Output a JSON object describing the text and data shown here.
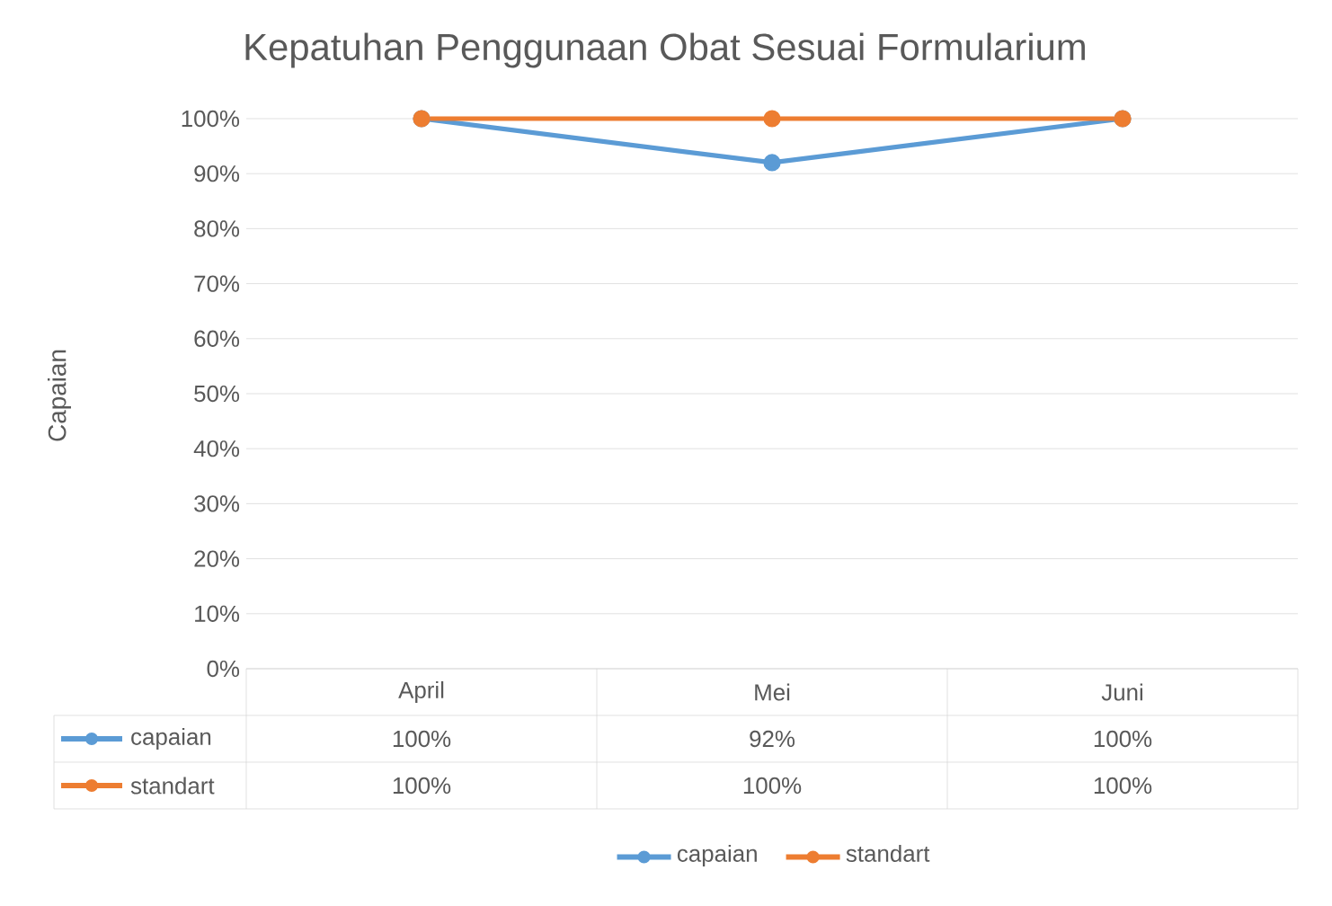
{
  "chart_data": {
    "type": "line",
    "title": "Kepatuhan Penggunaan Obat Sesuai Formularium",
    "ylabel": "Capaian",
    "categories": [
      "April",
      "Mei",
      "Juni"
    ],
    "series": [
      {
        "name": "capaian",
        "color": "#5b9bd5",
        "values": [
          100,
          92,
          100
        ],
        "value_labels": [
          "100%",
          "92%",
          "100%"
        ]
      },
      {
        "name": "standart",
        "color": "#ed7d31",
        "values": [
          100,
          100,
          100
        ],
        "value_labels": [
          "100%",
          "100%",
          "100%"
        ]
      }
    ],
    "ylim": [
      0,
      100
    ],
    "yticks": [
      {
        "value": 0,
        "label": "0%"
      },
      {
        "value": 10,
        "label": "10%"
      },
      {
        "value": 20,
        "label": "20%"
      },
      {
        "value": 30,
        "label": "30%"
      },
      {
        "value": 40,
        "label": "40%"
      },
      {
        "value": 50,
        "label": "50%"
      },
      {
        "value": 60,
        "label": "60%"
      },
      {
        "value": 70,
        "label": "70%"
      },
      {
        "value": 80,
        "label": "80%"
      },
      {
        "value": 90,
        "label": "90%"
      },
      {
        "value": 100,
        "label": "100%"
      }
    ],
    "grid": "y",
    "legend": "bottom",
    "marker": "circle",
    "line_style": "solid"
  }
}
